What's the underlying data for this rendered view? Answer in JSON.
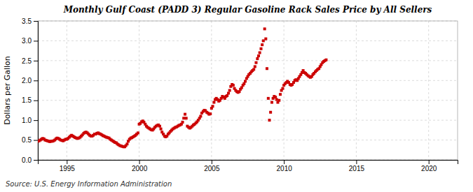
{
  "chart_data": {
    "type": "scatter",
    "title": "Monthly Gulf Coast (PADD 3) Regular Gasoline Rack Sales Price by All Sellers",
    "ylabel": "Dollars per Gallon",
    "annotations": [
      "Source: U.S. Energy Information Administration"
    ],
    "color": "#CC0000",
    "marker": "square",
    "grid": true,
    "xlim": [
      1993,
      2022
    ],
    "ylim": [
      0.0,
      3.5
    ],
    "xticks": [
      1995,
      2000,
      2005,
      2010,
      2015,
      2020
    ],
    "yticks": [
      {
        "value": 0.0,
        "label": "0.0"
      },
      0.5,
      {
        "value": 1.0,
        "label": "1.0"
      },
      1.5,
      {
        "value": 2.0,
        "label": "2.0"
      },
      2.5,
      {
        "value": 3.0,
        "label": "3.0"
      },
      3.5
    ],
    "x": [
      1993.0,
      1993.08,
      1993.17,
      1993.25,
      1993.33,
      1993.42,
      1993.5,
      1993.58,
      1993.67,
      1993.75,
      1993.83,
      1993.92,
      1994.0,
      1994.08,
      1994.17,
      1994.25,
      1994.33,
      1994.42,
      1994.5,
      1994.58,
      1994.67,
      1994.75,
      1994.83,
      1994.92,
      1995.0,
      1995.08,
      1995.17,
      1995.25,
      1995.33,
      1995.42,
      1995.5,
      1995.58,
      1995.67,
      1995.75,
      1995.83,
      1995.92,
      1996.0,
      1996.08,
      1996.17,
      1996.25,
      1996.33,
      1996.42,
      1996.5,
      1996.58,
      1996.67,
      1996.75,
      1996.83,
      1996.92,
      1997.0,
      1997.08,
      1997.17,
      1997.25,
      1997.33,
      1997.42,
      1997.5,
      1997.58,
      1997.67,
      1997.75,
      1997.83,
      1997.92,
      1998.0,
      1998.08,
      1998.17,
      1998.25,
      1998.33,
      1998.42,
      1998.5,
      1998.58,
      1998.67,
      1998.75,
      1998.83,
      1998.92,
      1999.0,
      1999.08,
      1999.17,
      1999.25,
      1999.33,
      1999.42,
      1999.5,
      1999.58,
      1999.67,
      1999.75,
      1999.83,
      1999.92,
      2000.0,
      2000.08,
      2000.17,
      2000.25,
      2000.33,
      2000.42,
      2000.5,
      2000.58,
      2000.67,
      2000.75,
      2000.83,
      2000.92,
      2001.0,
      2001.08,
      2001.17,
      2001.25,
      2001.33,
      2001.42,
      2001.5,
      2001.58,
      2001.67,
      2001.75,
      2001.83,
      2001.92,
      2002.0,
      2002.08,
      2002.17,
      2002.25,
      2002.33,
      2002.42,
      2002.5,
      2002.58,
      2002.67,
      2002.75,
      2002.83,
      2002.92,
      2003.0,
      2003.08,
      2003.17,
      2003.25,
      2003.33,
      2003.42,
      2003.5,
      2003.58,
      2003.67,
      2003.75,
      2003.83,
      2003.92,
      2004.0,
      2004.08,
      2004.17,
      2004.25,
      2004.33,
      2004.42,
      2004.5,
      2004.58,
      2004.67,
      2004.75,
      2004.83,
      2004.92,
      2005.0,
      2005.08,
      2005.17,
      2005.25,
      2005.33,
      2005.42,
      2005.5,
      2005.58,
      2005.67,
      2005.75,
      2005.83,
      2005.92,
      2006.0,
      2006.08,
      2006.17,
      2006.25,
      2006.33,
      2006.42,
      2006.5,
      2006.58,
      2006.67,
      2006.75,
      2006.83,
      2006.92,
      2007.0,
      2007.08,
      2007.17,
      2007.25,
      2007.33,
      2007.42,
      2007.5,
      2007.58,
      2007.67,
      2007.75,
      2007.83,
      2007.92,
      2008.0,
      2008.08,
      2008.17,
      2008.25,
      2008.33,
      2008.42,
      2008.5,
      2008.58,
      2008.67,
      2008.75,
      2008.83,
      2008.92,
      2009.0,
      2009.08,
      2009.17,
      2009.25,
      2009.33,
      2009.42,
      2009.5,
      2009.58,
      2009.67,
      2009.75,
      2009.83,
      2009.92,
      2010.0,
      2010.08,
      2010.17,
      2010.25,
      2010.33,
      2010.42,
      2010.5,
      2010.58,
      2010.67,
      2010.75,
      2010.83,
      2010.92,
      2011.0,
      2011.08,
      2011.17,
      2011.25,
      2011.33,
      2011.42,
      2011.5,
      2011.58,
      2011.67,
      2011.75,
      2011.83,
      2011.92,
      2012.0,
      2012.08,
      2012.17,
      2012.25,
      2012.33,
      2012.42,
      2012.5,
      2012.58,
      2012.67,
      2012.75,
      2012.83,
      2012.92
    ],
    "values": [
      0.47,
      0.48,
      0.5,
      0.52,
      0.54,
      0.53,
      0.5,
      0.49,
      0.48,
      0.47,
      0.46,
      0.47,
      0.47,
      0.48,
      0.5,
      0.53,
      0.55,
      0.54,
      0.52,
      0.5,
      0.49,
      0.48,
      0.5,
      0.52,
      0.52,
      0.54,
      0.57,
      0.6,
      0.62,
      0.6,
      0.58,
      0.56,
      0.55,
      0.54,
      0.55,
      0.57,
      0.6,
      0.63,
      0.67,
      0.69,
      0.7,
      0.68,
      0.65,
      0.62,
      0.6,
      0.6,
      0.62,
      0.65,
      0.65,
      0.67,
      0.68,
      0.66,
      0.65,
      0.63,
      0.61,
      0.6,
      0.58,
      0.57,
      0.56,
      0.55,
      0.52,
      0.5,
      0.48,
      0.46,
      0.44,
      0.43,
      0.4,
      0.38,
      0.36,
      0.35,
      0.34,
      0.33,
      0.33,
      0.36,
      0.4,
      0.47,
      0.52,
      0.55,
      0.56,
      0.58,
      0.6,
      0.62,
      0.65,
      0.68,
      0.9,
      0.92,
      0.96,
      0.98,
      0.95,
      0.9,
      0.85,
      0.82,
      0.8,
      0.78,
      0.76,
      0.75,
      0.78,
      0.82,
      0.85,
      0.87,
      0.88,
      0.85,
      0.78,
      0.7,
      0.65,
      0.6,
      0.58,
      0.6,
      0.65,
      0.68,
      0.72,
      0.75,
      0.78,
      0.8,
      0.82,
      0.83,
      0.85,
      0.87,
      0.88,
      0.9,
      0.95,
      1.05,
      1.15,
      1.05,
      0.85,
      0.82,
      0.8,
      0.82,
      0.85,
      0.88,
      0.9,
      0.93,
      0.96,
      1.0,
      1.05,
      1.1,
      1.18,
      1.22,
      1.25,
      1.24,
      1.2,
      1.18,
      1.15,
      1.16,
      1.3,
      1.35,
      1.45,
      1.52,
      1.55,
      1.52,
      1.48,
      1.5,
      1.55,
      1.6,
      1.58,
      1.55,
      1.6,
      1.62,
      1.68,
      1.75,
      1.85,
      1.9,
      1.88,
      1.8,
      1.75,
      1.72,
      1.7,
      1.72,
      1.78,
      1.82,
      1.88,
      1.92,
      1.98,
      2.05,
      2.1,
      2.15,
      2.18,
      2.22,
      2.25,
      2.28,
      2.35,
      2.45,
      2.55,
      2.62,
      2.7,
      2.8,
      2.9,
      3.0,
      3.3,
      3.05,
      2.3,
      1.55,
      1.0,
      1.2,
      1.45,
      1.55,
      1.6,
      1.58,
      1.52,
      1.45,
      1.5,
      1.65,
      1.75,
      1.8,
      1.88,
      1.92,
      1.95,
      1.98,
      1.95,
      1.9,
      1.88,
      1.9,
      1.95,
      2.0,
      2.02,
      2.0,
      2.05,
      2.1,
      2.15,
      2.2,
      2.25,
      2.2,
      2.18,
      2.15,
      2.12,
      2.1,
      2.08,
      2.1,
      2.15,
      2.18,
      2.22,
      2.25,
      2.28,
      2.3,
      2.35,
      2.4,
      2.45,
      2.48,
      2.5,
      2.52
    ]
  }
}
